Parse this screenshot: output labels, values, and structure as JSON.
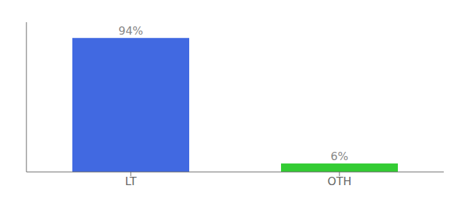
{
  "chart_data": {
    "type": "bar",
    "categories": [
      "LT",
      "OTH"
    ],
    "values": [
      94,
      6
    ],
    "value_labels": [
      "94%",
      "6%"
    ],
    "colors": [
      "#4169e1",
      "#33cc33"
    ],
    "ylim": [
      0,
      105
    ],
    "data_labels": true,
    "tick_labels": "x",
    "grid": false
  }
}
